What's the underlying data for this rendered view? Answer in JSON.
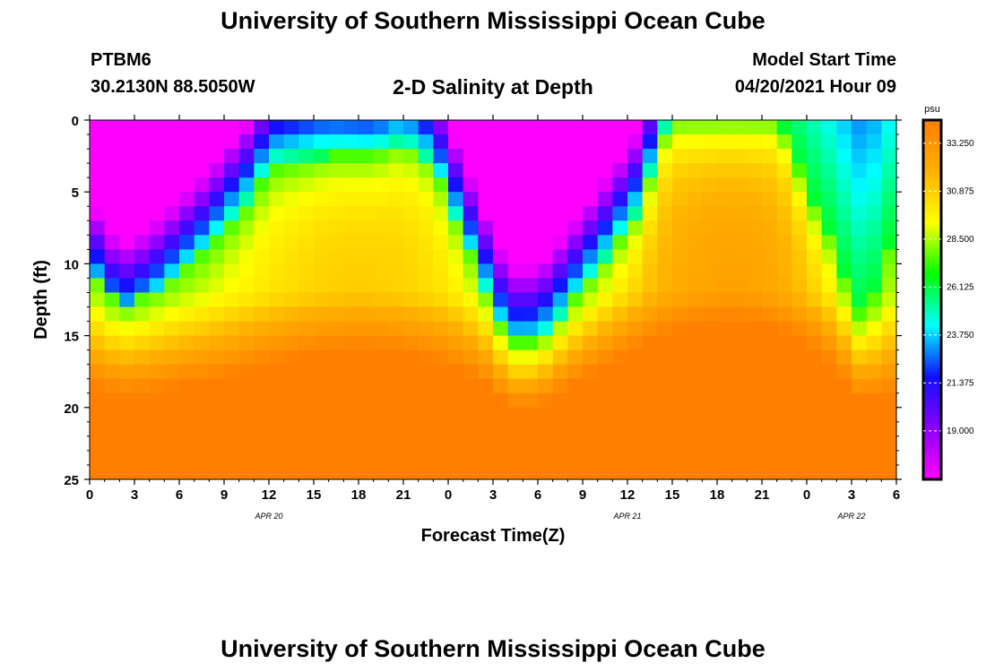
{
  "header": {
    "title_top": "University of Southern Mississippi Ocean Cube",
    "station_id": "PTBM6",
    "coords": "30.2130N  88.5050W",
    "subtitle": "2-D Salinity at Depth",
    "model_start_label": "Model Start Time",
    "model_start_value": "04/20/2021 Hour 09",
    "title_bottom": "University of Southern Mississippi Ocean Cube"
  },
  "chart_data": {
    "type": "heatmap",
    "xlabel": "Forecast Time(Z)",
    "ylabel": "Depth (ft)",
    "x_tick_labels": [
      "0",
      "3",
      "6",
      "9",
      "12",
      "15",
      "18",
      "21",
      "0",
      "3",
      "6",
      "9",
      "12",
      "15",
      "18",
      "21",
      "0",
      "3",
      "6"
    ],
    "x_range_hours": [
      0,
      54
    ],
    "date_labels": [
      {
        "text": "APR  20",
        "hour": 12
      },
      {
        "text": "APR  21",
        "hour": 36
      },
      {
        "text": "APR  22",
        "hour": 51
      }
    ],
    "y_ticks": [
      0,
      5,
      10,
      15,
      20,
      25
    ],
    "ylim": [
      0,
      25
    ],
    "y_inverted": true,
    "colorbar": {
      "unit": "psu",
      "labels": [
        "33.250",
        "30.875",
        "28.500",
        "26.125",
        "23.750",
        "21.375",
        "19.000"
      ],
      "min": 16.6,
      "max": 34.4,
      "colors": [
        "#ff00ff",
        "#8a00ff",
        "#1010ff",
        "#00ffff",
        "#00ff00",
        "#ffff00",
        "#ffb000",
        "#ff7f00"
      ]
    },
    "fresh_layer_bottom_depth_ft": [
      {
        "hour": 0,
        "depth": 10
      },
      {
        "hour": 2,
        "depth": 13
      },
      {
        "hour": 4,
        "depth": 12
      },
      {
        "hour": 8,
        "depth": 9
      },
      {
        "hour": 11,
        "depth": 5.5
      },
      {
        "hour": 12,
        "depth": 3.5
      },
      {
        "hour": 16,
        "depth": 2.5
      },
      {
        "hour": 19,
        "depth": 2.5
      },
      {
        "hour": 21,
        "depth": 1.5
      },
      {
        "hour": 23,
        "depth": 3
      },
      {
        "hour": 25,
        "depth": 8
      },
      {
        "hour": 27,
        "depth": 13
      },
      {
        "hour": 28,
        "depth": 15.5
      },
      {
        "hour": 30,
        "depth": 15.5
      },
      {
        "hour": 32,
        "depth": 13
      },
      {
        "hour": 35,
        "depth": 9
      },
      {
        "hour": 37,
        "depth": 6
      },
      {
        "hour": 38,
        "depth": 2
      },
      {
        "hour": 39,
        "depth": 0
      },
      {
        "hour": 46,
        "depth": 0
      },
      {
        "hour": 47,
        "depth": 2
      },
      {
        "hour": 48,
        "depth": 5
      },
      {
        "hour": 50,
        "depth": 9
      },
      {
        "hour": 51,
        "depth": 13
      },
      {
        "hour": 52,
        "depth": 14
      },
      {
        "hour": 54,
        "depth": 7
      }
    ]
  }
}
